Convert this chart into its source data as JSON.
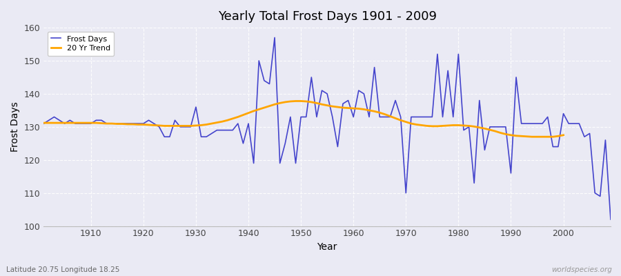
{
  "title": "Yearly Total Frost Days 1901 - 2009",
  "xlabel": "Year",
  "ylabel": "Frost Days",
  "xlim": [
    1901,
    2009
  ],
  "ylim": [
    100,
    160
  ],
  "yticks": [
    100,
    110,
    120,
    130,
    140,
    150,
    160
  ],
  "xticks": [
    1910,
    1920,
    1930,
    1940,
    1950,
    1960,
    1970,
    1980,
    1990,
    2000
  ],
  "plot_bg_color": "#eaeaf4",
  "fig_bg_color": "#eaeaf4",
  "line_color": "#4444cc",
  "trend_color": "#FFA500",
  "grid_color": "#ffffff",
  "watermark": "worldspecies.org",
  "lat_lon_label": "Latitude 20.75 Longitude 18.25",
  "years": [
    1901,
    1902,
    1903,
    1904,
    1905,
    1906,
    1907,
    1908,
    1909,
    1910,
    1911,
    1912,
    1913,
    1914,
    1915,
    1916,
    1917,
    1918,
    1919,
    1920,
    1921,
    1922,
    1923,
    1924,
    1925,
    1926,
    1927,
    1928,
    1929,
    1930,
    1931,
    1932,
    1933,
    1934,
    1935,
    1936,
    1937,
    1938,
    1939,
    1940,
    1941,
    1942,
    1943,
    1944,
    1945,
    1946,
    1947,
    1948,
    1949,
    1950,
    1951,
    1952,
    1953,
    1954,
    1955,
    1956,
    1957,
    1958,
    1959,
    1960,
    1961,
    1962,
    1963,
    1964,
    1965,
    1966,
    1967,
    1968,
    1969,
    1970,
    1971,
    1972,
    1973,
    1974,
    1975,
    1976,
    1977,
    1978,
    1979,
    1980,
    1981,
    1982,
    1983,
    1984,
    1985,
    1986,
    1987,
    1988,
    1989,
    1990,
    1991,
    1992,
    1993,
    1994,
    1995,
    1996,
    1997,
    1998,
    1999,
    2000,
    2001,
    2002,
    2003,
    2004,
    2005,
    2006,
    2007,
    2008,
    2009
  ],
  "frost_days": [
    131,
    132,
    133,
    132,
    131,
    132,
    131,
    131,
    131,
    131,
    132,
    132,
    131,
    131,
    131,
    131,
    131,
    131,
    131,
    131,
    132,
    131,
    130,
    127,
    127,
    132,
    130,
    130,
    130,
    136,
    127,
    127,
    128,
    129,
    129,
    129,
    129,
    131,
    125,
    131,
    119,
    150,
    144,
    143,
    157,
    119,
    125,
    133,
    119,
    133,
    133,
    145,
    133,
    141,
    140,
    133,
    124,
    137,
    138,
    133,
    141,
    140,
    133,
    148,
    133,
    133,
    133,
    138,
    133,
    110,
    133,
    133,
    133,
    133,
    133,
    152,
    133,
    147,
    133,
    152,
    129,
    130,
    113,
    138,
    123,
    130,
    130,
    130,
    130,
    116,
    145,
    131,
    131,
    131,
    131,
    131,
    133,
    124,
    124,
    134,
    131,
    131,
    131,
    127,
    128,
    110,
    109,
    126,
    102
  ],
  "trend_years": [
    1901,
    1902,
    1903,
    1904,
    1905,
    1906,
    1907,
    1908,
    1909,
    1910,
    1911,
    1912,
    1913,
    1914,
    1915,
    1916,
    1917,
    1918,
    1919,
    1920,
    1921,
    1922,
    1923,
    1924,
    1925,
    1926,
    1927,
    1928,
    1929,
    1930,
    1931,
    1932,
    1933,
    1934,
    1935,
    1936,
    1937,
    1938,
    1939,
    1940,
    1941,
    1942,
    1943,
    1944,
    1945,
    1946,
    1947,
    1948,
    1949,
    1950,
    1951,
    1952,
    1953,
    1954,
    1955,
    1956,
    1957,
    1958,
    1959,
    1960,
    1961,
    1962,
    1963,
    1964,
    1965,
    1966,
    1967,
    1968,
    1969,
    1970,
    1971,
    1972,
    1973,
    1974,
    1975,
    1976,
    1977,
    1978,
    1979,
    1980,
    1981,
    1982,
    1983,
    1984,
    1985,
    1986,
    1987,
    1988,
    1989,
    1990,
    1991,
    1992,
    1993,
    1994,
    1995,
    1996,
    1997,
    1998,
    1999,
    2000
  ],
  "trend_values": [
    131.2,
    131.2,
    131.2,
    131.2,
    131.2,
    131.2,
    131.2,
    131.2,
    131.2,
    131.2,
    131.2,
    131.1,
    131.0,
    131.0,
    130.9,
    130.9,
    130.8,
    130.8,
    130.7,
    130.7,
    130.6,
    130.5,
    130.4,
    130.3,
    130.3,
    130.3,
    130.3,
    130.3,
    130.3,
    130.4,
    130.5,
    130.7,
    131.0,
    131.3,
    131.6,
    132.0,
    132.5,
    133.0,
    133.6,
    134.2,
    134.8,
    135.3,
    135.8,
    136.3,
    136.8,
    137.2,
    137.5,
    137.7,
    137.8,
    137.8,
    137.7,
    137.5,
    137.2,
    136.8,
    136.5,
    136.2,
    136.0,
    135.8,
    135.7,
    135.6,
    135.5,
    135.3,
    135.0,
    134.7,
    134.3,
    133.8,
    133.2,
    132.6,
    132.0,
    131.5,
    131.0,
    130.7,
    130.5,
    130.3,
    130.2,
    130.2,
    130.3,
    130.4,
    130.5,
    130.5,
    130.4,
    130.3,
    130.1,
    129.8,
    129.5,
    129.1,
    128.7,
    128.2,
    127.8,
    127.5,
    127.3,
    127.2,
    127.1,
    127.0,
    127.0,
    127.0,
    127.0,
    127.0,
    127.2,
    127.5
  ]
}
